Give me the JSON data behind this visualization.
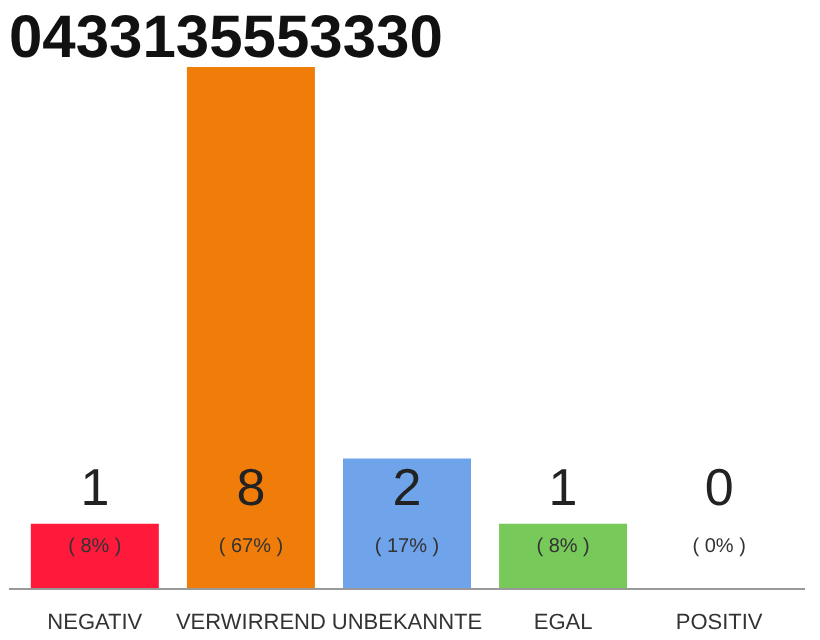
{
  "chart_data": {
    "type": "bar",
    "title": "0433135553330",
    "categories": [
      "NEGATIV",
      "VERWIRREND",
      "UNBEKANNTE",
      "EGAL",
      "POSITIV"
    ],
    "values": [
      1,
      8,
      2,
      1,
      0
    ],
    "colors": [
      "#ff1a3c",
      "#f07d0a",
      "#6fa3ea",
      "#77c95a",
      "#cccccc"
    ],
    "value_labels": [
      "1",
      "8",
      "2",
      "1",
      "0"
    ],
    "annotations": [
      "( 8% )",
      "( 67% )",
      "( 17% )",
      "( 8% )",
      "( 0% )"
    ],
    "grid": false
  }
}
